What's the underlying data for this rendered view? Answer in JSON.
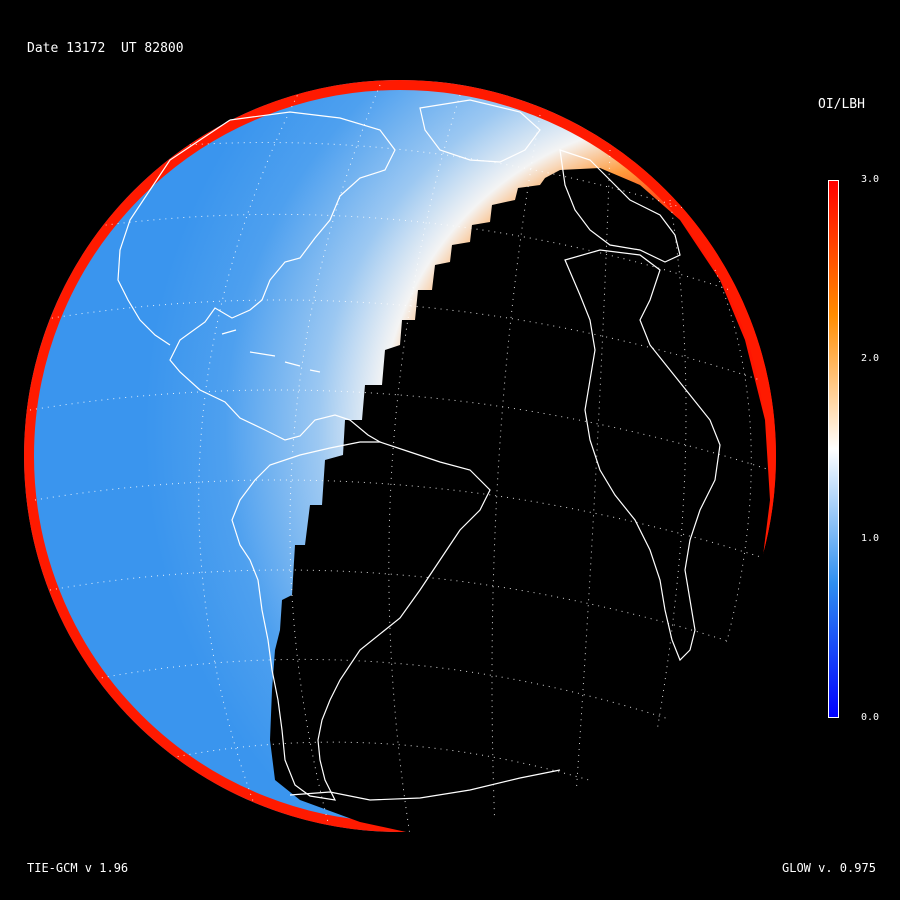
{
  "header": {
    "date_label": "Date 13172",
    "ut_label": "UT 82800"
  },
  "colorbar": {
    "title": "OI/LBH",
    "ticks": [
      "3.0",
      "2.0",
      "1.0",
      "0.0"
    ],
    "range": [
      0.0,
      3.0
    ],
    "colors": [
      "#0000ff",
      "#2f8ff0",
      "#ffffff",
      "#ff8c00",
      "#ff0000"
    ]
  },
  "footer": {
    "model_left": "TIE-GCM v 1.96",
    "model_right": "GLOW v. 0.975"
  },
  "map": {
    "projection": "orthographic",
    "field": "OI/LBH ratio",
    "day_colors": {
      "limb": "#ff1a00",
      "blue": "#3a95ee",
      "white": "#f4f4f4",
      "orange": "#ff9933",
      "red": "#ff1500"
    },
    "night_color": "#000000",
    "grid_color": "#ffffff",
    "coast_color": "#ffffff"
  }
}
